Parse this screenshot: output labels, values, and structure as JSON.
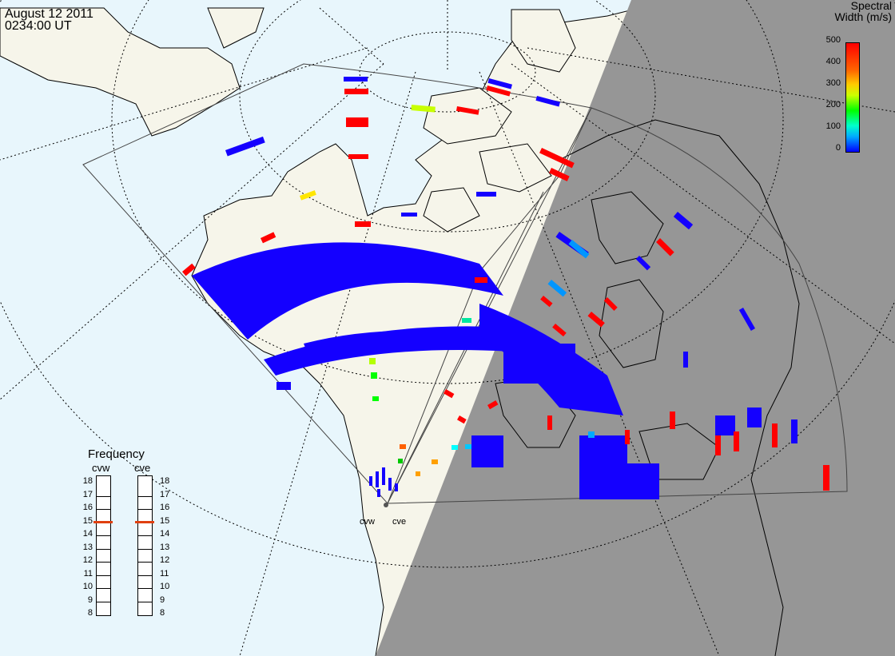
{
  "title": {
    "date": "August 12 2011",
    "time": "0234:00 UT"
  },
  "colorbar": {
    "title_line1": "Spectral",
    "title_line2": "Width (m/s)",
    "ticks": [
      "500",
      "400",
      "300",
      "200",
      "100",
      "0"
    ],
    "range": [
      0,
      500
    ]
  },
  "frequency_panel": {
    "title": "Frequency",
    "columns": [
      {
        "label": "cvw",
        "current_mhz": 15
      },
      {
        "label": "cve",
        "current_mhz": 15
      }
    ],
    "scale": [
      "18",
      "17",
      "16",
      "15",
      "14",
      "13",
      "12",
      "11",
      "10",
      "9",
      "8"
    ]
  },
  "radar_sites": [
    {
      "label": "cvw"
    },
    {
      "label": "cve"
    }
  ],
  "colors": {
    "ocean": "#e8f6fc",
    "land": "#f5f5eb",
    "night": "#969696",
    "low_width": "#1400ff",
    "high_width": "#ff0000",
    "freq_marker": "#e04010"
  }
}
